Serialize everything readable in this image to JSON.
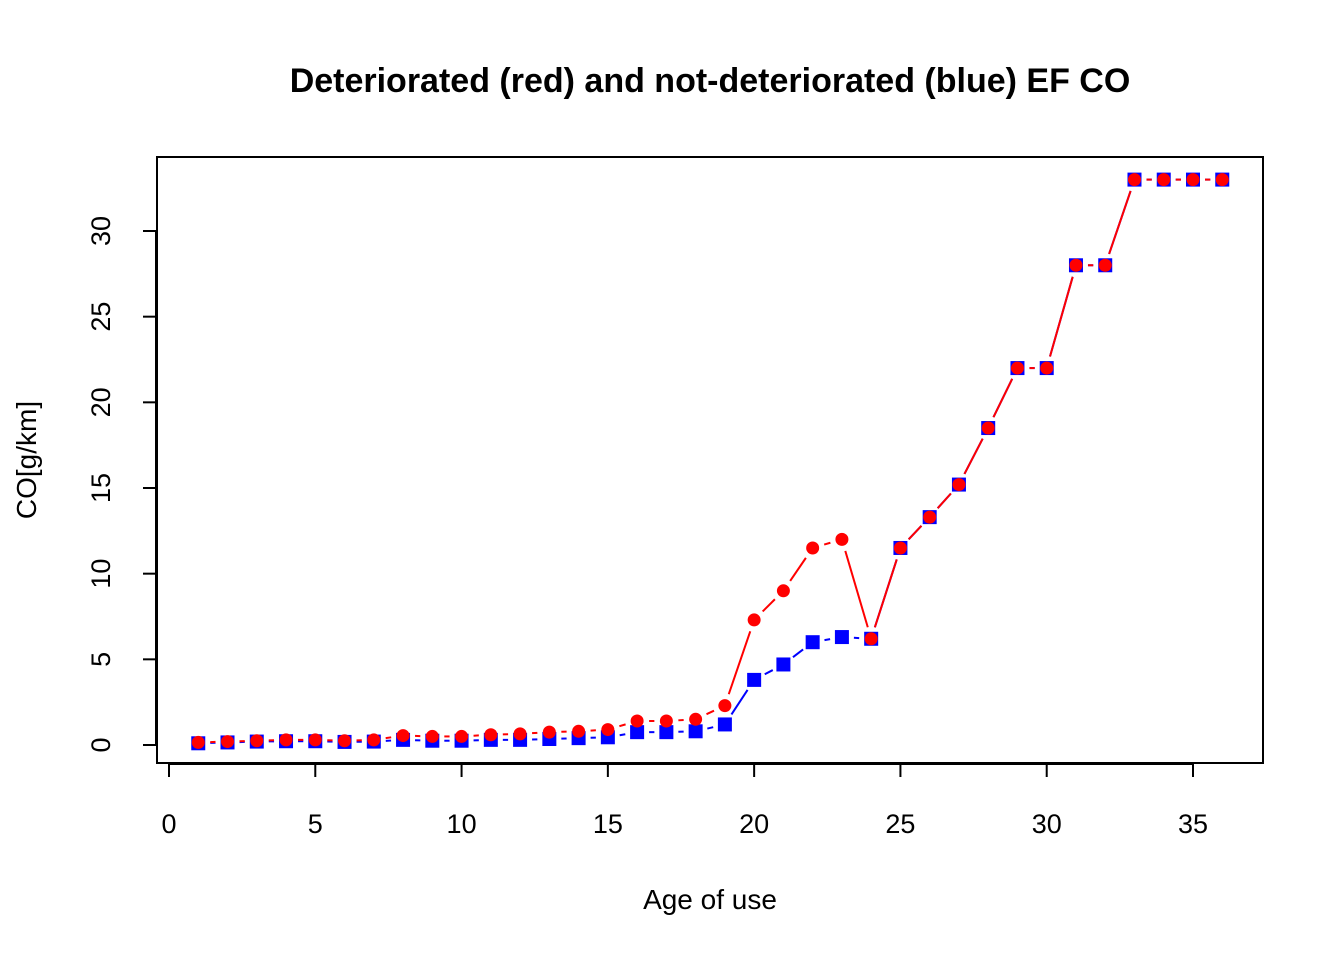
{
  "chart_data": {
    "type": "scatter",
    "title": "Deteriorated (red) and not-deteriorated (blue) EF CO",
    "xlabel": "Age of use",
    "ylabel": "CO[g/km]",
    "xlim": [
      0,
      37
    ],
    "ylim": [
      -1,
      33.5
    ],
    "xticks": [
      0,
      5,
      10,
      15,
      20,
      25,
      30,
      35
    ],
    "yticks": [
      0,
      5,
      10,
      15,
      20,
      25,
      30
    ],
    "grid": false,
    "x": [
      1,
      2,
      3,
      4,
      5,
      6,
      7,
      8,
      9,
      10,
      11,
      12,
      13,
      14,
      15,
      16,
      17,
      18,
      19,
      20,
      21,
      22,
      23,
      24,
      25,
      26,
      27,
      28,
      29,
      30,
      31,
      32,
      33,
      34,
      35,
      36
    ],
    "series": [
      {
        "marker": "square",
        "color": "#0000ff",
        "line_style": "dashed",
        "values": [
          0.1,
          0.15,
          0.2,
          0.22,
          0.22,
          0.18,
          0.2,
          0.3,
          0.25,
          0.25,
          0.3,
          0.3,
          0.35,
          0.4,
          0.45,
          0.75,
          0.75,
          0.8,
          1.2,
          3.8,
          4.7,
          6.0,
          6.3,
          6.2,
          11.5,
          13.3,
          15.2,
          18.5,
          22.0,
          22.0,
          28.0,
          28.0,
          33.0,
          33.0,
          33.0,
          33.0
        ]
      },
      {
        "marker": "circle",
        "color": "#ff0000",
        "line_style": "dashed",
        "values": [
          0.15,
          0.2,
          0.25,
          0.3,
          0.3,
          0.25,
          0.3,
          0.55,
          0.5,
          0.5,
          0.6,
          0.65,
          0.75,
          0.8,
          0.9,
          1.4,
          1.4,
          1.5,
          2.3,
          7.3,
          9.0,
          11.5,
          12.0,
          6.2,
          11.5,
          13.3,
          15.2,
          18.5,
          22.0,
          22.0,
          28.0,
          28.0,
          33.0,
          33.0,
          33.0,
          33.0
        ]
      }
    ]
  }
}
